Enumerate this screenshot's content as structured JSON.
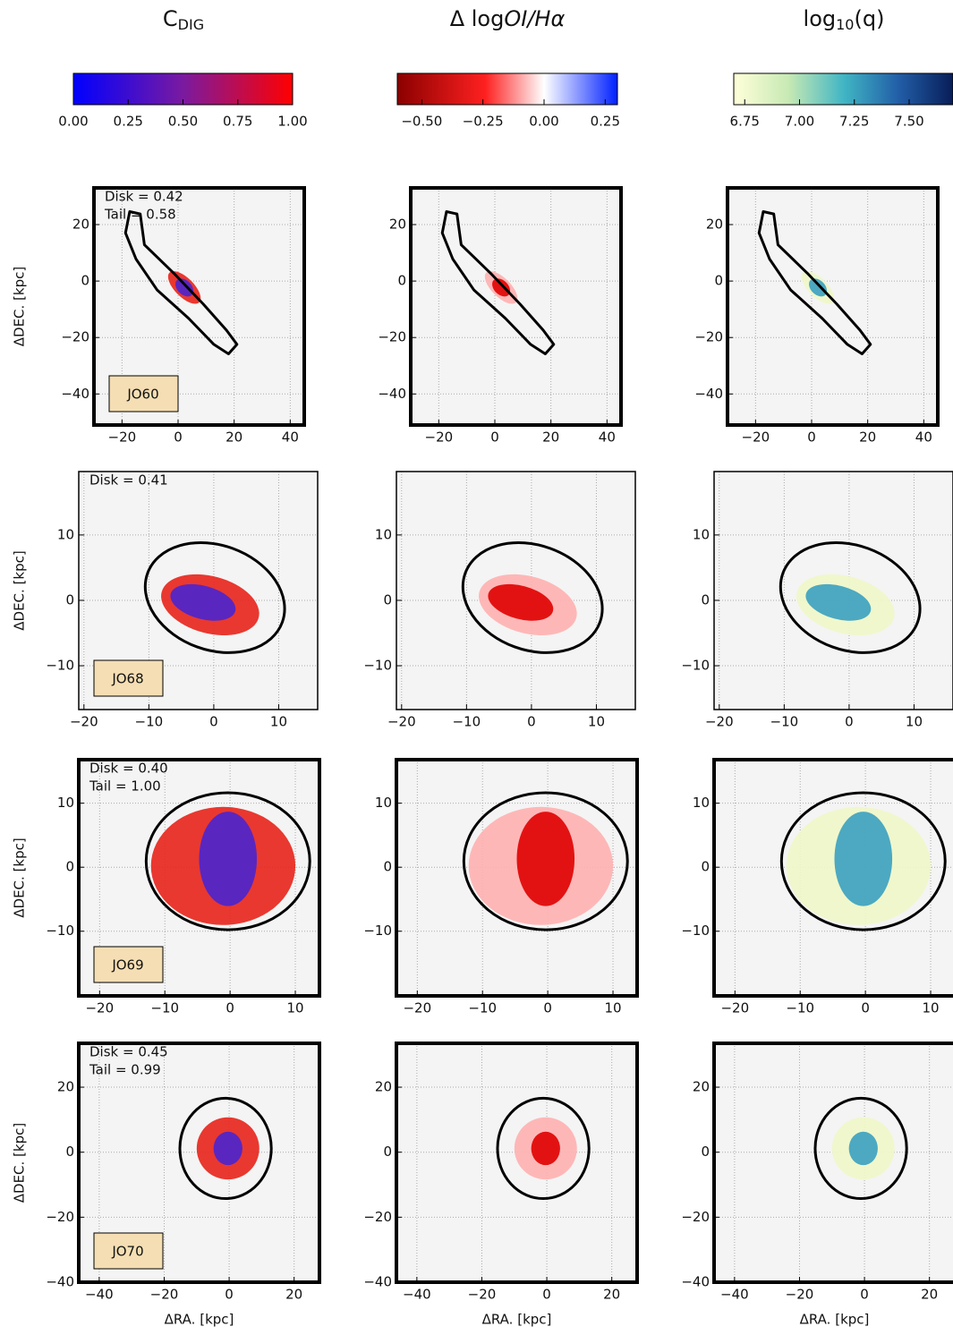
{
  "chart_data": {
    "type": "image",
    "columns": [
      {
        "title": [
          {
            "text": "C"
          },
          {
            "text": "DIG",
            "sub": true
          }
        ],
        "colorbar": {
          "lim": [
            0,
            1
          ],
          "colors": [
            "#0000ff",
            "#7a1aa0",
            "#ff0000"
          ],
          "ticks": [
            {
              "value": 0,
              "label": "0.00"
            },
            {
              "value": 0.25,
              "label": "0.25"
            },
            {
              "value": 0.5,
              "label": "0.50"
            },
            {
              "value": 0.75,
              "label": "0.75"
            },
            {
              "value": 1,
              "label": "1.00"
            }
          ]
        }
      },
      {
        "title": [
          {
            "text": "Δ log"
          },
          {
            "text": "OI/Hα",
            "italic": true
          }
        ],
        "colorbar": {
          "lim": [
            -0.6,
            0.3
          ],
          "colors": [
            "#8b0000",
            "#ff2020",
            "#ffffff",
            "#0020ff"
          ],
          "ticks": [
            {
              "value": -0.5,
              "label": "−0.50"
            },
            {
              "value": -0.25,
              "label": "−0.25"
            },
            {
              "value": 0,
              "label": "0.00"
            },
            {
              "value": 0.25,
              "label": "0.25"
            }
          ]
        }
      },
      {
        "title": [
          {
            "text": "log"
          },
          {
            "text": "10",
            "sub": true
          },
          {
            "text": "(q)"
          }
        ],
        "colorbar": {
          "lim": [
            6.7,
            7.7
          ],
          "colors": [
            "#ffffd9",
            "#c7e9b4",
            "#41b6c4",
            "#225ea8",
            "#081d58"
          ],
          "ticks": [
            {
              "value": 6.75,
              "label": "6.75"
            },
            {
              "value": 7,
              "label": "7.00"
            },
            {
              "value": 7.25,
              "label": "7.25"
            },
            {
              "value": 7.5,
              "label": "7.50"
            }
          ]
        }
      }
    ],
    "x_label": "ΔRA. [kpc]",
    "y_label": "ΔDEC. [kpc]",
    "grid": true,
    "rows": [
      {
        "name": "JO60",
        "annotations": [
          "Disk = 0.42",
          "Tail = 0.58"
        ],
        "xlim": [
          -30,
          45
        ],
        "ylim": [
          -51,
          33
        ],
        "xticks": [
          {
            "value": -20,
            "label": "−20"
          },
          0,
          20,
          40
        ],
        "yticks": [
          20,
          0,
          {
            "value": -20,
            "label": "−20"
          },
          {
            "value": -40,
            "label": "−40"
          }
        ]
      },
      {
        "name": "JO68",
        "annotations": [
          "Disk = 0.41"
        ],
        "xlim": [
          -20.8,
          16
        ],
        "ylim": [
          -16.7,
          19.7
        ],
        "xticks": [
          {
            "value": -20,
            "label": "−20"
          },
          {
            "value": -10,
            "label": "−10"
          },
          0,
          10
        ],
        "yticks": [
          10,
          0,
          {
            "value": -10,
            "label": "−10"
          }
        ]
      },
      {
        "name": "JO69",
        "annotations": [
          "Disk = 0.40",
          "Tail = 1.00"
        ],
        "xlim": [
          -23.2,
          13.7
        ],
        "ylim": [
          -20.1,
          16.8
        ],
        "xticks": [
          {
            "value": -20,
            "label": "−20"
          },
          {
            "value": -10,
            "label": "−10"
          },
          0,
          10
        ],
        "yticks": [
          10,
          0,
          {
            "value": -10,
            "label": "−10"
          }
        ]
      },
      {
        "name": "JO70",
        "annotations": [
          "Disk = 0.45",
          "Tail = 0.99"
        ],
        "xlim": [
          -46.3,
          27.8
        ],
        "ylim": [
          -40,
          33.5
        ],
        "xticks": [
          {
            "value": -40,
            "label": "−40"
          },
          {
            "value": -20,
            "label": "−20"
          },
          0,
          20
        ],
        "yticks": [
          20,
          0,
          {
            "value": -20,
            "label": "−20"
          },
          {
            "value": -40,
            "label": "−40"
          }
        ]
      }
    ]
  }
}
